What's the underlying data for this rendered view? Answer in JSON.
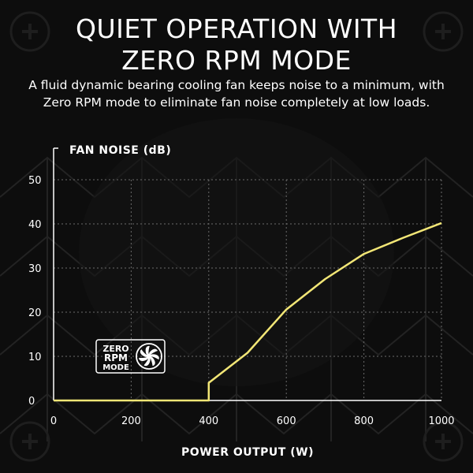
{
  "header": {
    "title_line1": "QUIET OPERATION WITH",
    "title_line2": "ZERO RPM MODE",
    "subtitle_line1": "A fluid dynamic bearing cooling fan keeps noise to a minimum, with",
    "subtitle_line2": "Zero RPM mode to eliminate fan noise completely at low loads."
  },
  "badge": {
    "line1": "ZERO",
    "line2": "RPM",
    "line3": "MODE",
    "icon": "fan-icon"
  },
  "colors": {
    "background": "#0d0d0d",
    "line": "#f2e676",
    "grid": "#6a6a6a",
    "text": "#ffffff"
  },
  "chart_data": {
    "type": "line",
    "xlabel": "POWER OUTPUT (W)",
    "ylabel": "FAN NOISE (dB)",
    "xlim": [
      0,
      1000
    ],
    "ylim": [
      0,
      50
    ],
    "xticks": [
      0,
      200,
      400,
      600,
      800,
      1000
    ],
    "yticks": [
      0,
      10,
      20,
      30,
      40,
      50
    ],
    "grid": true,
    "series": [
      {
        "x": [
          0,
          400,
          400,
          500,
          600,
          700,
          800,
          900,
          1000
        ],
        "y": [
          0,
          0,
          4,
          10.8,
          20.6,
          27.5,
          33.2,
          36.8,
          40.2
        ]
      }
    ]
  }
}
